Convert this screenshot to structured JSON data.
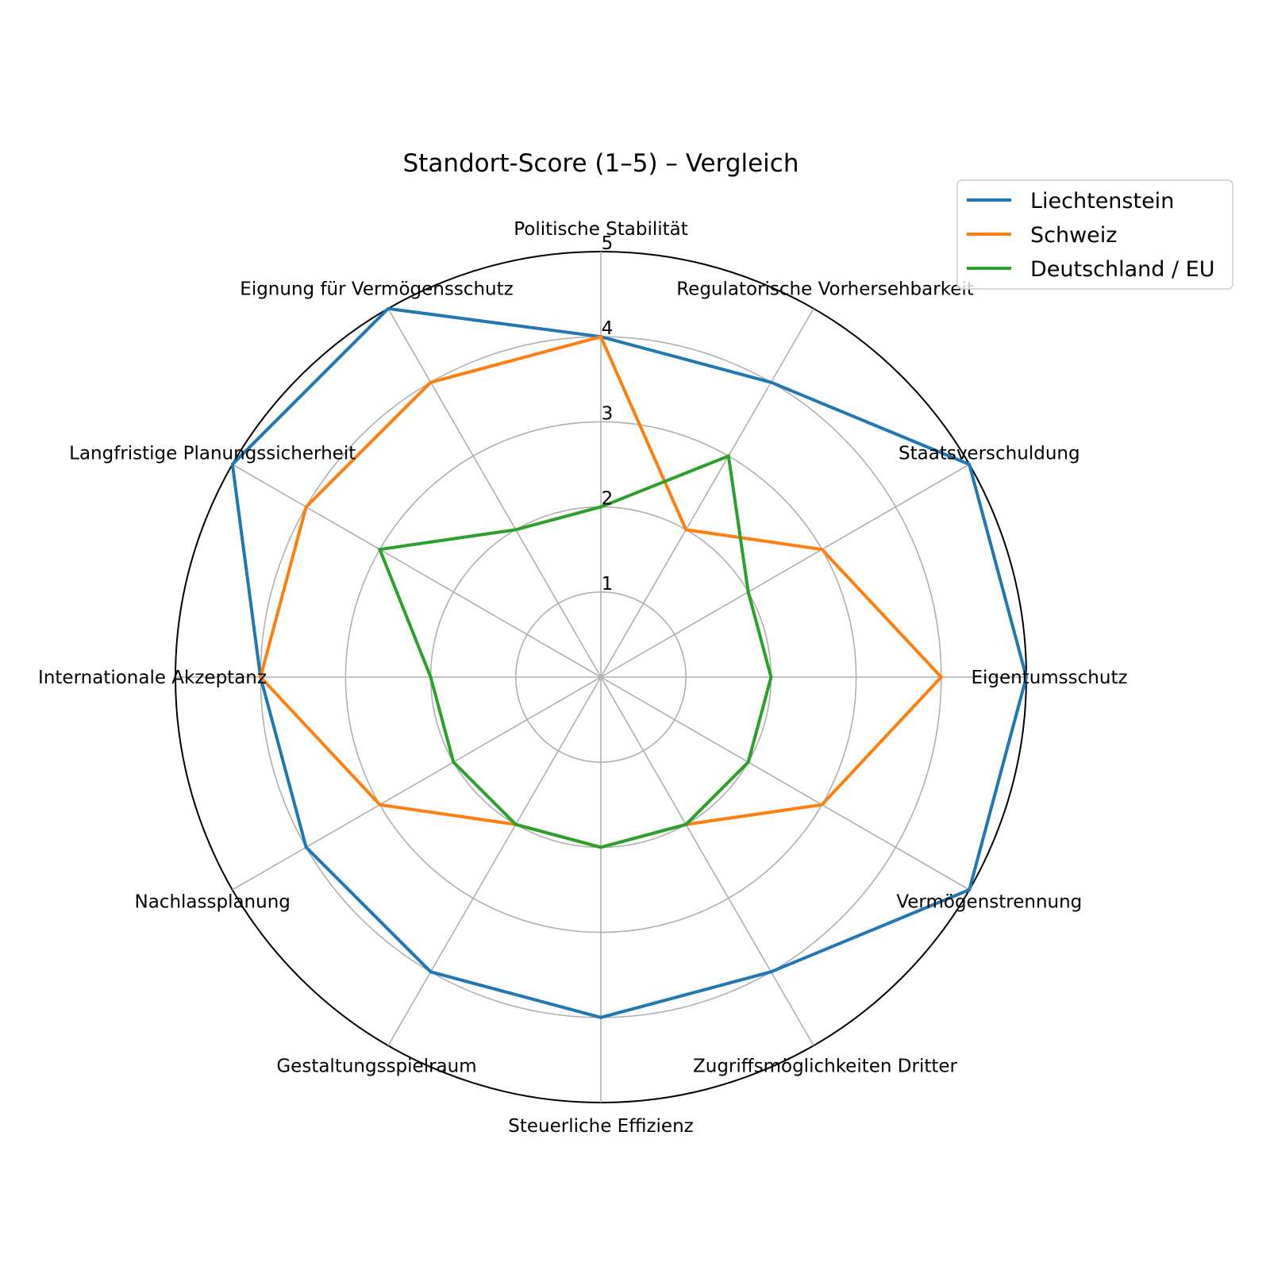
{
  "chart_data": {
    "type": "radar",
    "title": "Standort-Score (1–5) – Vergleich",
    "categories": [
      "Politische Stabilität",
      "Regulatorische Vorhersehbarkeit",
      "Staatsverschuldung",
      "Eigentumsschutz",
      "Vermögenstrennung",
      "Zugriffsmöglichkeiten Dritter",
      "Steuerliche Effizienz",
      "Gestaltungsspielraum",
      "Nachlassplanung",
      "Internationale Akzeptanz",
      "Langfristige Planungssicherheit",
      "Eignung für Vermögensschutz"
    ],
    "rlim": [
      0,
      5
    ],
    "rticks": [
      1,
      2,
      3,
      4,
      5
    ],
    "rtick_labels": [
      "1",
      "2",
      "3",
      "4",
      "5"
    ],
    "grid": true,
    "legend_position": "top-right",
    "series": [
      {
        "name": "Liechtenstein",
        "color": "#1f77b4",
        "values": [
          4,
          4,
          5,
          5,
          5,
          4,
          4,
          4,
          4,
          4,
          5,
          5
        ]
      },
      {
        "name": "Schweiz",
        "color": "#ff7f0e",
        "values": [
          4,
          2,
          3,
          4,
          3,
          2,
          2,
          2,
          3,
          4,
          4,
          4
        ]
      },
      {
        "name": "Deutschland / EU",
        "color": "#2ca02c",
        "values": [
          2,
          3,
          2,
          2,
          2,
          2,
          2,
          2,
          2,
          2,
          3,
          2
        ]
      }
    ]
  }
}
